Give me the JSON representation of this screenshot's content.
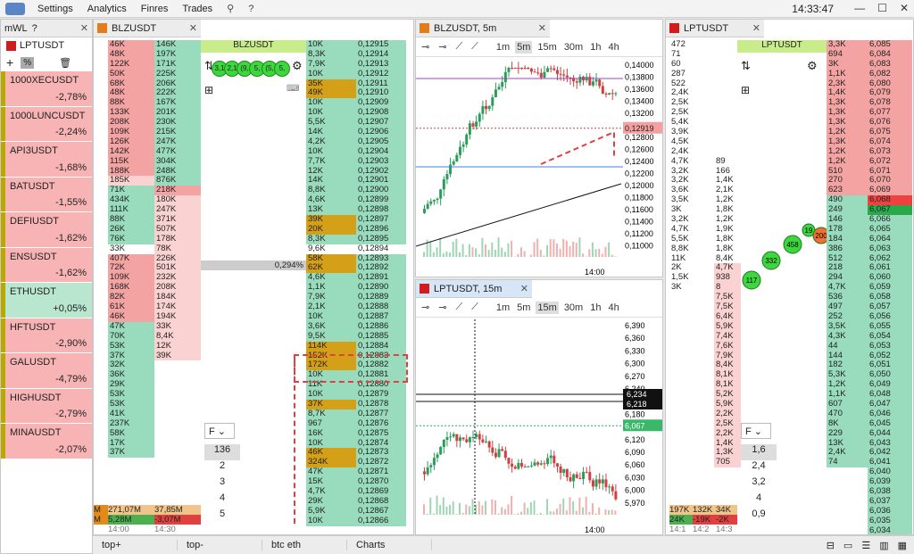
{
  "app": {
    "menu": [
      "Settings",
      "Analytics",
      "Finres",
      "Trades"
    ],
    "clock": "14:33:47"
  },
  "watchlist": {
    "title": "mWL",
    "symbol": "LPTUSDT",
    "items": [
      {
        "name": "1000XECUSDT",
        "change": "-2,78%",
        "c": "p"
      },
      {
        "name": "1000LUNCUSDT",
        "change": "-2,24%",
        "c": "p"
      },
      {
        "name": "API3USDT",
        "change": "-1,68%",
        "c": "p"
      },
      {
        "name": "BATUSDT",
        "change": "-1,55%",
        "c": "p"
      },
      {
        "name": "DEFIUSDT",
        "change": "-1,62%",
        "c": "p"
      },
      {
        "name": "ENSUSDT",
        "change": "-1,62%",
        "c": "p"
      },
      {
        "name": "ETHUSDT",
        "change": "+0,05%",
        "c": "g"
      },
      {
        "name": "HFTUSDT",
        "change": "-2,90%",
        "c": "p"
      },
      {
        "name": "GALUSDT",
        "change": "-4,79%",
        "c": "p"
      },
      {
        "name": "HIGHUSDT",
        "change": "-2,79%",
        "c": "p"
      },
      {
        "name": "MINAUSDT",
        "change": "-2,07%",
        "c": "p"
      }
    ]
  },
  "blz": {
    "tab": "BLZUSDT",
    "title": "BLZUSDT",
    "pct": "0,294%",
    "trades": [
      "46K",
      "48K",
      "122K",
      "50K",
      "68K",
      "48K",
      "88K",
      "133K",
      "208K",
      "109K",
      "126K",
      "142K",
      "115K",
      "188K",
      "185K",
      "71K",
      "434K",
      "111K",
      "88K",
      "26K",
      "76K",
      "33K",
      "407K",
      "72K",
      "109K",
      "168K",
      "82K",
      "61K",
      "46K",
      "47K",
      "70K",
      "53K",
      "37K",
      "32K",
      "36K",
      "29K",
      "53K",
      "53K",
      "41K",
      "237K",
      "58K",
      "17K",
      "37K"
    ],
    "cl1": [
      "146K",
      "197K",
      "171K",
      "225K",
      "206K",
      "222K",
      "167K",
      "201K",
      "230K",
      "215K",
      "247K",
      "477K",
      "304K",
      "248K",
      "876K",
      "218K",
      "180K",
      "247K",
      "371K",
      "507K",
      "178K",
      "78K",
      "226K",
      "501K",
      "232K",
      "208K",
      "184K",
      "174K",
      "194K",
      "33K",
      "8,4K",
      "12K",
      "39K"
    ],
    "vols": [
      "10K",
      "8,3K",
      "7,9K",
      "10K",
      "35K",
      "49K",
      "10K",
      "10K",
      "5,5K",
      "14K",
      "4,2K",
      "10K",
      "7,7K",
      "12K",
      "14K",
      "8,8K",
      "4,6K",
      "13K",
      "39K",
      "20K",
      "8,3K",
      "9,6K",
      "58K",
      "62K",
      "4,6K",
      "1,1K",
      "7,9K",
      "2,1K",
      "10K",
      "3,6K",
      "9,5K",
      "114K",
      "152K",
      "172K",
      "10K",
      "11K",
      "10K",
      "37K",
      "8,7K",
      "967",
      "16K",
      "10K",
      "46K",
      "324K",
      "47K",
      "15K",
      "4,7K",
      "29K",
      "5,9K",
      "10K"
    ],
    "prices": [
      "0,12915",
      "0,12914",
      "0,12913",
      "0,12912",
      "0,12911",
      "0,12910",
      "0,12909",
      "0,12908",
      "0,12907",
      "0,12906",
      "0,12905",
      "0,12904",
      "0,12903",
      "0,12902",
      "0,12901",
      "0,12900",
      "0,12899",
      "0,12898",
      "0,12897",
      "0,12896",
      "0,12895",
      "0,12894",
      "0,12893",
      "0,12892",
      "0,12891",
      "0,12890",
      "0,12889",
      "0,12888",
      "0,12887",
      "0,12886",
      "0,12885",
      "0,12884",
      "0,12883",
      "0,12882",
      "0,12881",
      "0,12880",
      "0,12879",
      "0,12878",
      "0,12877",
      "0,12876",
      "0,12875",
      "0,12874",
      "0,12873",
      "0,12872",
      "0,12871",
      "0,12870",
      "0,12869",
      "0,12868",
      "0,12867",
      "0,12866"
    ],
    "clusters": [
      "3,1",
      "2,1",
      "(9,",
      "5,",
      "(5,",
      "5,"
    ],
    "foot": [
      "271,07M",
      "5,28M",
      "37,85M",
      "-3,07M",
      "14:00",
      "14:30"
    ],
    "mult": [
      "136",
      "2",
      "3",
      "4",
      "5"
    ],
    "sel": "F"
  },
  "chart1": {
    "title": "BLZUSDT, 5m",
    "tfs": [
      "1m",
      "5m",
      "15m",
      "30m",
      "1h",
      "4h"
    ],
    "active": "5m",
    "ticks": [
      "0,14000",
      "0,13800",
      "0,13600",
      "0,13400",
      "0,13200",
      "0,13000",
      "0,12800",
      "0,12600",
      "0,12400",
      "0,12200",
      "0,12000",
      "0,11800",
      "0,11600",
      "0,11400",
      "0,11200",
      "0,11000"
    ],
    "last": "0,12919",
    "xtick": "14:00"
  },
  "chart2": {
    "title": "LPTUSDT, 15m",
    "tfs": [
      "1m",
      "5m",
      "15m",
      "30m",
      "1h",
      "4h"
    ],
    "active": "15m",
    "ticks": [
      "6,390",
      "6,360",
      "6,330",
      "6,300",
      "6,270",
      "6,240",
      "6,210",
      "6,180",
      "6,150",
      "6,120",
      "6,090",
      "6,060",
      "6,030",
      "6,000",
      "5,970"
    ],
    "last": "6,218",
    "last2": "6,234",
    "cur": "6,067",
    "xtick": "14:00"
  },
  "lpt": {
    "tab": "LPTUSDT",
    "title": "LPTUSDT",
    "left1": [
      "472",
      "71",
      "60",
      "287",
      "522",
      "2,4K",
      "2,5K",
      "2,5K",
      "5,4K",
      "3,9K",
      "4,5K",
      "2,4K",
      "4,7K",
      "3,2K",
      "3,2K",
      "3,6K",
      "3,5K",
      "3K",
      "3,2K",
      "4,7K",
      "5,5K",
      "8,8K",
      "11K",
      "2K",
      "1,5K",
      "3K"
    ],
    "left2": [
      "",
      "",
      "",
      "",
      "",
      "",
      "",
      "",
      "",
      "",
      "",
      "",
      "89",
      "166",
      "1,4K",
      "2,1K",
      "1,2K",
      "1,8K",
      "1,2K",
      "1,9K",
      "1,8K",
      "1,8K",
      "8,4K",
      "4,7K",
      "938",
      "8",
      "7,5K",
      "7,5K",
      "6,4K",
      "5,9K",
      "7,4K",
      "7,6K",
      "7,9K",
      "8,4K",
      "8,1K",
      "8,1K",
      "5,2K",
      "5,9K",
      "2,2K",
      "2,5K",
      "2,2K",
      "1,4K",
      "1,3K",
      "705"
    ],
    "vol": [
      "3,3K",
      "694",
      "3K",
      "1,1K",
      "2,3K",
      "1,4K",
      "1,3K",
      "1,3K",
      "1,3K",
      "1,2K",
      "1,3K",
      "1,2K",
      "1,2K",
      "510",
      "270",
      "623",
      "490",
      "249",
      "146",
      "178",
      "184",
      "386",
      "512",
      "218",
      "294",
      "4,7K",
      "536",
      "497",
      "252",
      "3,5K",
      "4,3K",
      "44",
      "144",
      "182",
      "5,3K",
      "1,2K",
      "1,1K",
      "607",
      "470",
      "8K",
      "229",
      "13K",
      "2,4K",
      "74"
    ],
    "prices": [
      "6,085",
      "6,084",
      "6,083",
      "6,082",
      "6,080",
      "6,079",
      "6,078",
      "6,077",
      "6,076",
      "6,075",
      "6,074",
      "6,073",
      "6,072",
      "6,071",
      "6,070",
      "6,069",
      "6,068",
      "6,067",
      "6,066",
      "6,065",
      "6,064",
      "6,063",
      "6,062",
      "6,061",
      "6,060",
      "6,059",
      "6,058",
      "6,057",
      "6,056",
      "6,055",
      "6,054",
      "6,053",
      "6,052",
      "6,051",
      "6,050",
      "6,049",
      "6,048",
      "6,047",
      "6,046",
      "6,045",
      "6,044",
      "6,043",
      "6,042",
      "6,041",
      "6,040",
      "6,039",
      "6,038",
      "6,037",
      "6,036",
      "6,035",
      "6,034"
    ],
    "bubbles": [
      "117",
      "332",
      "458",
      "19",
      "200"
    ],
    "foot": [
      "197K",
      "132K",
      "34K",
      "24K",
      "-19K",
      "-2K",
      "14:1",
      "14:2",
      "14:3"
    ],
    "mult": [
      "1,6",
      "2,4",
      "3,2",
      "4",
      "0,9"
    ],
    "sel": "F"
  },
  "bottom": [
    "top+",
    "top-",
    "btc eth",
    "Charts"
  ]
}
